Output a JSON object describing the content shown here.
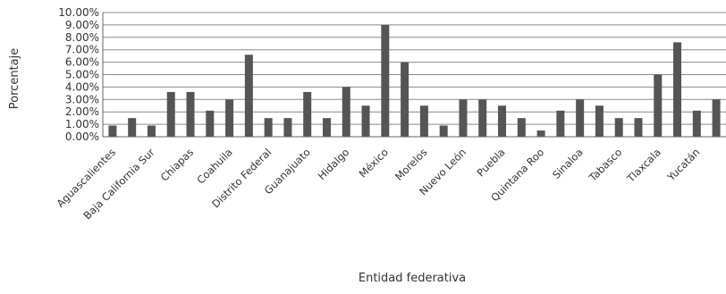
{
  "chart_data": {
    "type": "bar",
    "title": "",
    "xlabel": "Entidad federativa",
    "ylabel": "Porcentaje",
    "ylim": [
      0,
      10
    ],
    "yticks": [
      "0.00%",
      "1.00%",
      "2.00%",
      "3.00%",
      "4.00%",
      "5.00%",
      "6.00%",
      "7.00%",
      "8.00%",
      "9.00%",
      "10.00%"
    ],
    "grid": true,
    "legend": "none",
    "bar_color": "#555555",
    "categories": [
      "Aguascalientes",
      "",
      "Baja California Sur",
      "",
      "Chiapas",
      "",
      "Coahuila",
      "",
      "Distrito Federal",
      "",
      "Guanajuato",
      "",
      "Hidalgo",
      "",
      "México",
      "",
      "Morelos",
      "",
      "Nuevo León",
      "",
      "Puebla",
      "",
      "Quintana Roo",
      "",
      "Sinaloa",
      "",
      "Tabasco",
      "",
      "Tlaxcala",
      "",
      "Yucatán",
      ""
    ],
    "values": [
      0.9,
      1.5,
      0.9,
      3.6,
      3.6,
      2.1,
      3.0,
      6.6,
      1.5,
      1.5,
      3.6,
      1.5,
      4.0,
      2.5,
      9.0,
      6.0,
      2.5,
      0.9,
      3.0,
      3.0,
      2.5,
      1.5,
      0.5,
      2.1,
      3.0,
      2.5,
      1.5,
      1.5,
      5.0,
      7.6,
      2.1,
      3.0
    ]
  }
}
